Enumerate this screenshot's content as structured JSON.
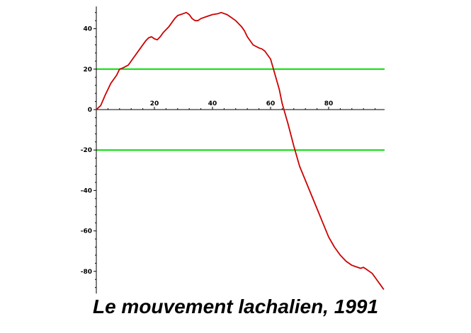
{
  "caption": "Le mouvement lachalien, 1991",
  "chart_data": {
    "type": "line",
    "title": "",
    "xlabel": "",
    "ylabel": "",
    "xlim": [
      0,
      99
    ],
    "ylim": [
      -91,
      51
    ],
    "x_ticks": [
      20,
      40,
      60,
      80
    ],
    "y_ticks": [
      40,
      20,
      0,
      -20,
      -40,
      -60,
      -80
    ],
    "x_tick_labels": [
      "20",
      "40",
      "60",
      "80"
    ],
    "y_tick_labels": [
      "40",
      "20",
      "0",
      "-20",
      "-40",
      "-60",
      "-80"
    ],
    "grid": false,
    "series": [
      {
        "color": "#cc0000",
        "x": [
          0,
          1.5,
          3,
          5,
          7,
          8,
          9,
          11,
          13,
          15,
          17,
          18,
          19,
          20,
          21,
          22,
          23,
          25,
          27,
          28,
          29,
          30,
          31,
          32,
          33,
          34,
          35,
          36,
          38,
          40,
          42,
          43,
          44,
          45,
          46,
          48,
          50,
          51,
          52,
          54,
          56,
          57,
          58,
          60,
          61,
          62,
          63,
          64,
          66,
          68,
          70,
          72,
          74,
          76,
          78,
          80,
          82,
          84,
          86,
          88,
          90,
          91,
          92,
          93,
          94,
          95,
          96,
          97,
          98,
          99
        ],
        "y": [
          0,
          2,
          7,
          13,
          17,
          20,
          20.5,
          22,
          26,
          30,
          34,
          35.5,
          36,
          35,
          34.5,
          36,
          38,
          41,
          45,
          46.5,
          47,
          47.5,
          48,
          47,
          45,
          44,
          44,
          45,
          46,
          47,
          47.5,
          48,
          47.5,
          47,
          46,
          44,
          41,
          39,
          36,
          32,
          30.5,
          30,
          29,
          25,
          20,
          15,
          10,
          3,
          -7,
          -18,
          -28,
          -35,
          -42,
          -49,
          -56,
          -63,
          -68,
          -72,
          -75,
          -77,
          -78,
          -78.5,
          -78,
          -79,
          -80,
          -81,
          -83,
          -85,
          -87,
          -89
        ]
      }
    ],
    "reference_lines": [
      {
        "y": 20,
        "color": "#00dd00"
      },
      {
        "y": -20,
        "color": "#00dd00"
      }
    ]
  }
}
